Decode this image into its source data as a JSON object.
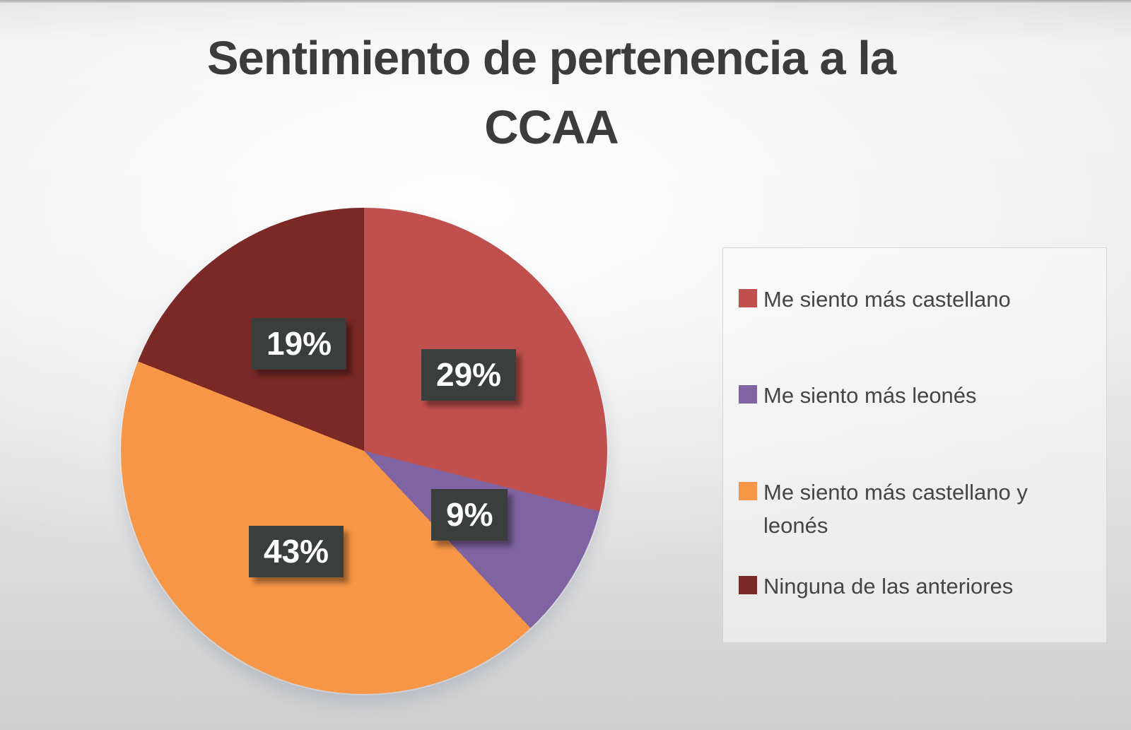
{
  "title": {
    "line1": "Sentimiento de pertenencia a la",
    "line2": "CCAA"
  },
  "chart_data": {
    "type": "pie",
    "title": "Sentimiento de pertenencia a la CCAA",
    "categories": [
      "Me siento más castellano",
      "Me siento más leonés",
      "Me siento más castellano y leonés",
      "Ninguna de las anteriores"
    ],
    "values": [
      29,
      9,
      43,
      19
    ],
    "labels": [
      "29%",
      "9%",
      "43%",
      "19%"
    ],
    "colors": [
      "#c0504d",
      "#8064a2",
      "#f79646",
      "#7a2927"
    ],
    "unit": "%",
    "start_angle_deg": 0,
    "direction": "clockwise",
    "legend_position": "right",
    "label_style": {
      "background": "#3a3f3d",
      "text_color": "#ffffff"
    }
  },
  "legend": {
    "items": [
      {
        "label": "Me siento más castellano",
        "color": "#c0504d"
      },
      {
        "label": "Me siento más leonés",
        "color": "#8064a2"
      },
      {
        "label": "Me siento más castellano y leonés",
        "color": "#f79646"
      },
      {
        "label": "Ninguna de las anteriores",
        "color": "#7a2927"
      }
    ]
  }
}
